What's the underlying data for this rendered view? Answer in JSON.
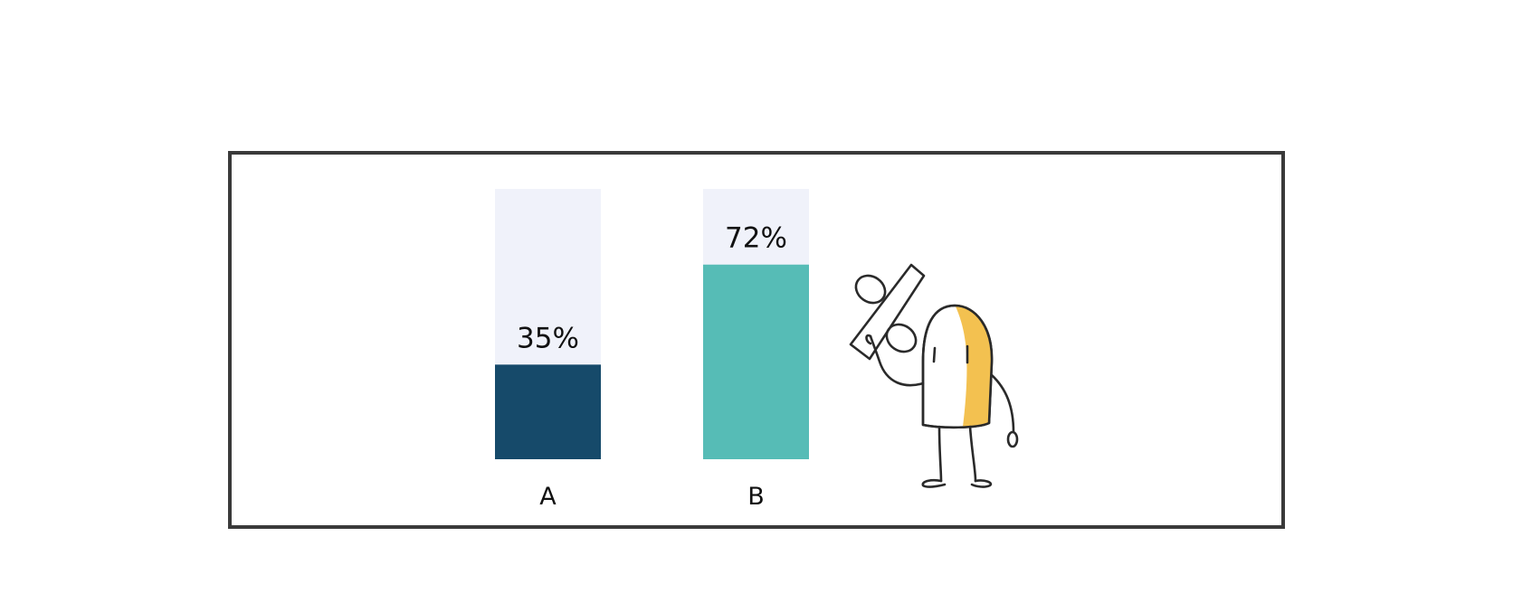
{
  "chart_data": {
    "type": "bar",
    "categories": [
      "A",
      "B"
    ],
    "values": [
      35,
      72
    ],
    "value_labels": [
      "35%",
      "72%"
    ],
    "unit": "%",
    "ylim": [
      0,
      100
    ],
    "title": "",
    "xlabel": "",
    "ylabel": "",
    "grid": false,
    "legend": "none",
    "colors": {
      "bars": [
        "#164a6a",
        "#56bcb6"
      ],
      "track": "#f0f2fa",
      "frame": "#3a3a3a",
      "character_accent": "#f3c150"
    }
  },
  "illustration": {
    "icon": "percent-sign-character-icon"
  }
}
